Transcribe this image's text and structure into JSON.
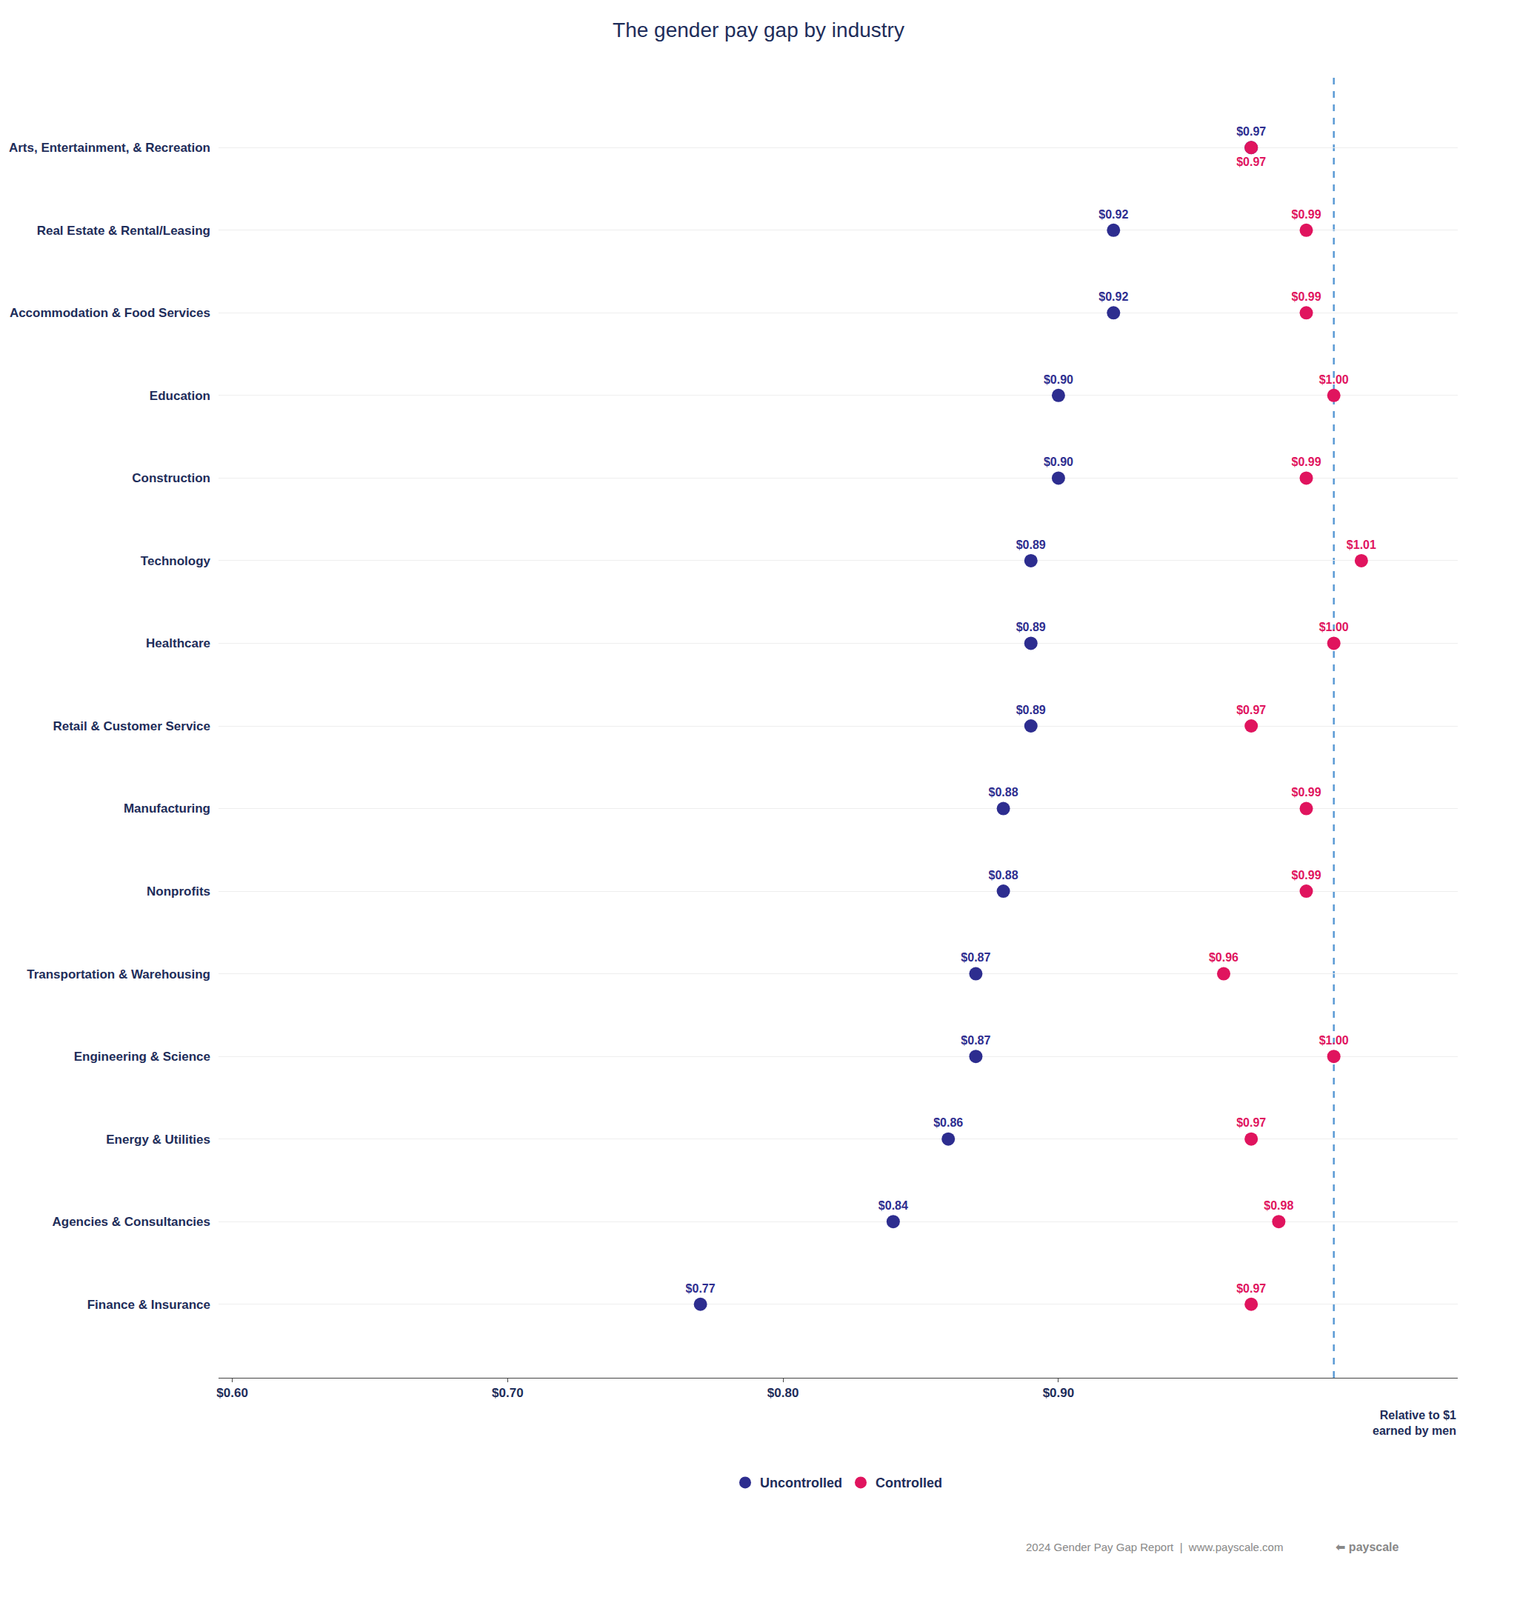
{
  "chart_data": {
    "type": "scatter",
    "title": "The gender pay gap by industry",
    "categories": [
      "Arts, Entertainment, & Recreation",
      "Real Estate & Rental/Leasing",
      "Accommodation & Food Services",
      "Education",
      "Construction",
      "Technology",
      "Healthcare",
      "Retail & Customer Service",
      "Manufacturing",
      "Nonprofits",
      "Transportation & Warehousing",
      "Engineering & Science",
      "Energy & Utilities",
      "Agencies & Consultancies",
      "Finance & Insurance"
    ],
    "series": [
      {
        "name": "Uncontrolled",
        "color": "#2d2d8f",
        "marker": "circle",
        "values": [
          0.97,
          0.92,
          0.92,
          0.9,
          0.9,
          0.89,
          0.89,
          0.89,
          0.88,
          0.88,
          0.87,
          0.87,
          0.86,
          0.84,
          0.77
        ],
        "value_labels": [
          "$0.97",
          "$0.92",
          "$0.92",
          "$0.90",
          "$0.90",
          "$0.89",
          "$0.89",
          "$0.89",
          "$0.88",
          "$0.88",
          "$0.87",
          "$0.87",
          "$0.86",
          "$0.84",
          "$0.77"
        ]
      },
      {
        "name": "Controlled",
        "color": "#e0145e",
        "marker": "circle",
        "values": [
          0.97,
          0.99,
          0.99,
          1.0,
          0.99,
          1.01,
          1.0,
          0.97,
          0.99,
          0.99,
          0.96,
          1.0,
          0.97,
          0.98,
          0.97
        ],
        "value_labels": [
          "$0.97",
          "$0.99",
          "$0.99",
          "$1.00",
          "$0.99",
          "$1.01",
          "$1.00",
          "$0.97",
          "$0.99",
          "$0.99",
          "$0.96",
          "$1.00",
          "$0.97",
          "$0.98",
          "$0.97"
        ]
      }
    ],
    "xlim": [
      0.595,
      1.045
    ],
    "xticks": [
      {
        "value": 0.6,
        "label": "$0.60"
      },
      {
        "value": 0.7,
        "label": "$0.70"
      },
      {
        "value": 0.8,
        "label": "$0.80"
      },
      {
        "value": 0.9,
        "label": "$0.90"
      }
    ],
    "reference_line": {
      "x": 1.0,
      "color": "#5b9bd5",
      "line_style": "dashed"
    },
    "data_labels": true,
    "grid": "y",
    "legend": "bottom",
    "annotations": [
      "Relative to $1\nearned by men",
      "2024 Gender Pay Gap Report  |  www.payscale.com",
      "⬅ payscale"
    ]
  }
}
